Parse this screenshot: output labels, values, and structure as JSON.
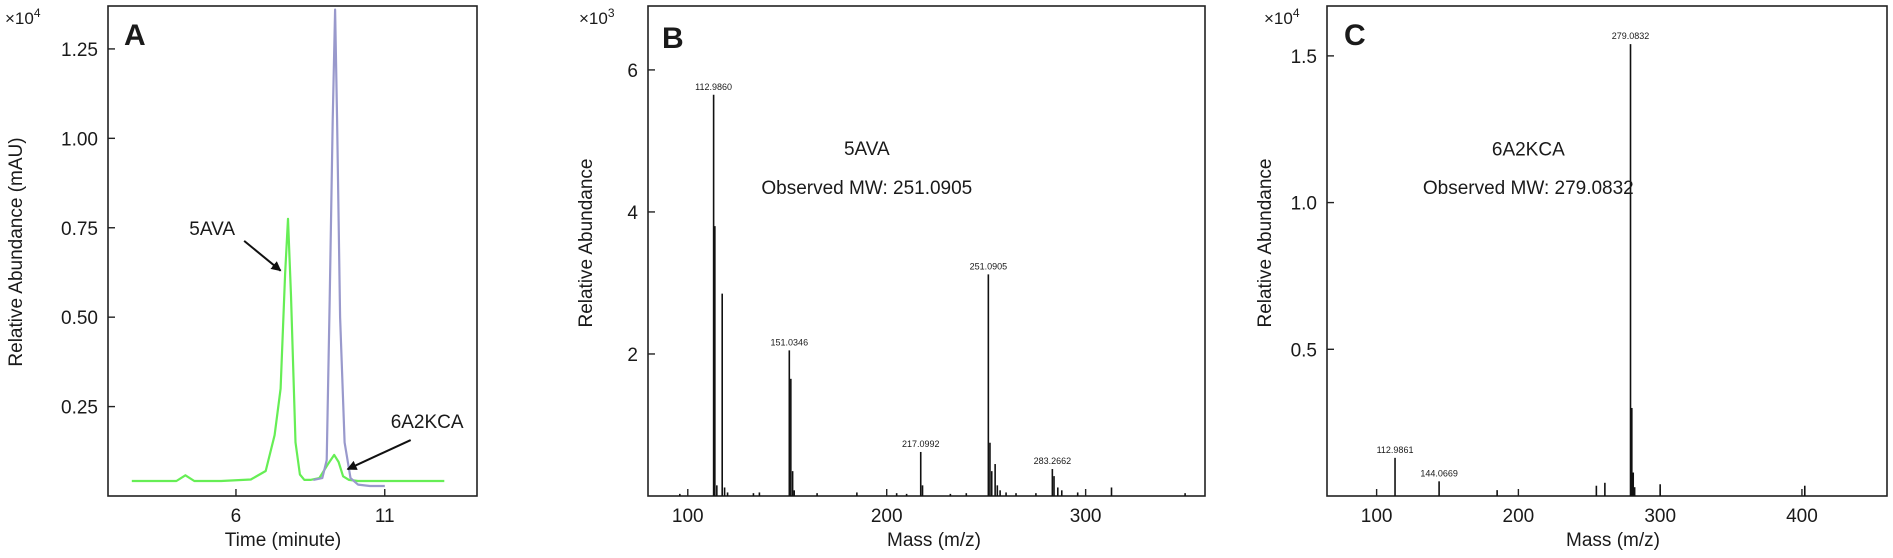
{
  "panels": [
    {
      "letter": "A",
      "exponent_base": "×10",
      "exponent_power": "4"
    },
    {
      "letter": "B",
      "exponent_base": "×10",
      "exponent_power": "3"
    },
    {
      "letter": "C",
      "exponent_base": "×10",
      "exponent_power": "4"
    }
  ],
  "colors": {
    "trace_5ava": "#66ee55",
    "trace_6a2kca": "#9999cc",
    "axis": "#222222",
    "spectrum": "#111111"
  },
  "chart_data": [
    {
      "type": "line",
      "panel": "A",
      "xlabel": "Time (minute)",
      "ylabel": "Relative Abundance (mAU)",
      "xlim": [
        1.7,
        14.1
      ],
      "ylim": [
        0.0,
        1.37
      ],
      "x_ticks": [
        {
          "value": 6,
          "label": "6"
        },
        {
          "value": 11,
          "label": "11"
        }
      ],
      "y_ticks": [
        {
          "value": 0.25,
          "label": "0.25"
        },
        {
          "value": 0.5,
          "label": "0.50"
        },
        {
          "value": 0.75,
          "label": "0.75"
        },
        {
          "value": 1.0,
          "label": "1.00"
        },
        {
          "value": 1.25,
          "label": "1.25"
        }
      ],
      "series": [
        {
          "color": "#66ee55",
          "x": [
            2.5,
            3.5,
            4.0,
            4.3,
            4.6,
            5.5,
            6.5,
            7.0,
            7.3,
            7.5,
            7.65,
            7.75,
            7.85,
            8.0,
            8.15,
            8.3,
            8.5,
            8.8,
            9.1,
            9.3,
            9.45,
            9.6,
            9.8,
            10.1,
            10.5,
            11.5,
            12.5,
            13.0
          ],
          "y": [
            0.042,
            0.042,
            0.042,
            0.058,
            0.042,
            0.042,
            0.046,
            0.07,
            0.17,
            0.3,
            0.62,
            0.775,
            0.56,
            0.15,
            0.06,
            0.045,
            0.045,
            0.05,
            0.09,
            0.115,
            0.095,
            0.055,
            0.045,
            0.042,
            0.042,
            0.042,
            0.042,
            0.042
          ]
        },
        {
          "color": "#9999cc",
          "x": [
            8.6,
            8.9,
            9.05,
            9.15,
            9.25,
            9.33,
            9.4,
            9.5,
            9.65,
            9.85,
            10.1,
            10.5,
            11.0
          ],
          "y": [
            0.045,
            0.05,
            0.1,
            0.55,
            1.05,
            1.36,
            1.05,
            0.5,
            0.15,
            0.05,
            0.032,
            0.028,
            0.028
          ]
        }
      ],
      "annotations": [
        {
          "text": "5AVA",
          "x": 5.2,
          "y": 0.73
        },
        {
          "text": "6A2KCA",
          "x": 11.2,
          "y": 0.19
        }
      ]
    },
    {
      "type": "bar",
      "panel": "B",
      "xlabel": "Mass (m/z)",
      "ylabel": "Relative Abundance",
      "xlim": [
        80,
        360
      ],
      "ylim": [
        0,
        6.9
      ],
      "x_ticks": [
        {
          "value": 100,
          "label": "100"
        },
        {
          "value": 200,
          "label": "200"
        },
        {
          "value": 300,
          "label": "300"
        }
      ],
      "y_ticks": [
        {
          "value": 2,
          "label": "2"
        },
        {
          "value": 4,
          "label": "4"
        },
        {
          "value": 6,
          "label": "6"
        }
      ],
      "peaks": [
        {
          "mz": 96.0,
          "y": 0.03
        },
        {
          "mz": 112.986,
          "y": 5.65,
          "label": "112.9860"
        },
        {
          "mz": 113.6,
          "y": 3.8
        },
        {
          "mz": 114.6,
          "y": 0.15
        },
        {
          "mz": 117.3,
          "y": 2.85
        },
        {
          "mz": 118.5,
          "y": 0.12
        },
        {
          "mz": 120.0,
          "y": 0.05
        },
        {
          "mz": 133.0,
          "y": 0.04
        },
        {
          "mz": 136.0,
          "y": 0.05
        },
        {
          "mz": 151.0346,
          "y": 2.05,
          "label": "151.0346"
        },
        {
          "mz": 151.8,
          "y": 1.65
        },
        {
          "mz": 152.7,
          "y": 0.35
        },
        {
          "mz": 153.5,
          "y": 0.08
        },
        {
          "mz": 165.0,
          "y": 0.04
        },
        {
          "mz": 185.0,
          "y": 0.05
        },
        {
          "mz": 205.0,
          "y": 0.04
        },
        {
          "mz": 210.0,
          "y": 0.03
        },
        {
          "mz": 217.0992,
          "y": 0.62,
          "label": "217.0992"
        },
        {
          "mz": 218.0,
          "y": 0.15
        },
        {
          "mz": 232.0,
          "y": 0.03
        },
        {
          "mz": 240.0,
          "y": 0.04
        },
        {
          "mz": 251.0905,
          "y": 3.12,
          "label": "251.0905"
        },
        {
          "mz": 251.9,
          "y": 0.75
        },
        {
          "mz": 252.8,
          "y": 0.35
        },
        {
          "mz": 254.5,
          "y": 0.45
        },
        {
          "mz": 255.6,
          "y": 0.15
        },
        {
          "mz": 257.0,
          "y": 0.08
        },
        {
          "mz": 260.0,
          "y": 0.05
        },
        {
          "mz": 265.0,
          "y": 0.04
        },
        {
          "mz": 275.0,
          "y": 0.04
        },
        {
          "mz": 283.2662,
          "y": 0.38,
          "label": "283.2662"
        },
        {
          "mz": 284.1,
          "y": 0.28
        },
        {
          "mz": 286.0,
          "y": 0.12
        },
        {
          "mz": 288.0,
          "y": 0.08
        },
        {
          "mz": 296.0,
          "y": 0.05
        },
        {
          "mz": 313.0,
          "y": 0.12
        },
        {
          "mz": 350.0,
          "y": 0.04
        }
      ],
      "annotations": [
        {
          "text": "5AVA",
          "x": 190.0,
          "y": 4.8
        },
        {
          "text": "Observed MW: 251.0905",
          "x": 190.0,
          "y": 4.25
        }
      ]
    },
    {
      "type": "bar",
      "panel": "C",
      "xlabel": "Mass (m/z)",
      "ylabel": "Relative Abundance",
      "xlim": [
        65,
        460
      ],
      "ylim": [
        0,
        1.67
      ],
      "x_ticks": [
        {
          "value": 100,
          "label": "100"
        },
        {
          "value": 200,
          "label": "200"
        },
        {
          "value": 300,
          "label": "300"
        },
        {
          "value": 400,
          "label": "400"
        }
      ],
      "y_ticks": [
        {
          "value": 0.5,
          "label": "0.5"
        },
        {
          "value": 1.0,
          "label": "1.0"
        },
        {
          "value": 1.5,
          "label": "1.5"
        }
      ],
      "peaks": [
        {
          "mz": 112.9861,
          "y": 0.13,
          "label": "112.9861"
        },
        {
          "mz": 144.0669,
          "y": 0.05,
          "label": "144.0669"
        },
        {
          "mz": 185.0,
          "y": 0.02
        },
        {
          "mz": 255.0,
          "y": 0.035
        },
        {
          "mz": 261.0,
          "y": 0.045
        },
        {
          "mz": 279.0832,
          "y": 1.54,
          "label": "279.0832"
        },
        {
          "mz": 280.0,
          "y": 0.3
        },
        {
          "mz": 281.0,
          "y": 0.08
        },
        {
          "mz": 282.0,
          "y": 0.03
        },
        {
          "mz": 300.0,
          "y": 0.04
        },
        {
          "mz": 402.0,
          "y": 0.035
        }
      ],
      "annotations": [
        {
          "text": "6A2KCA",
          "x": 207.0,
          "y": 1.16
        },
        {
          "text": "Observed MW: 279.0832",
          "x": 207.0,
          "y": 1.03
        }
      ]
    }
  ]
}
